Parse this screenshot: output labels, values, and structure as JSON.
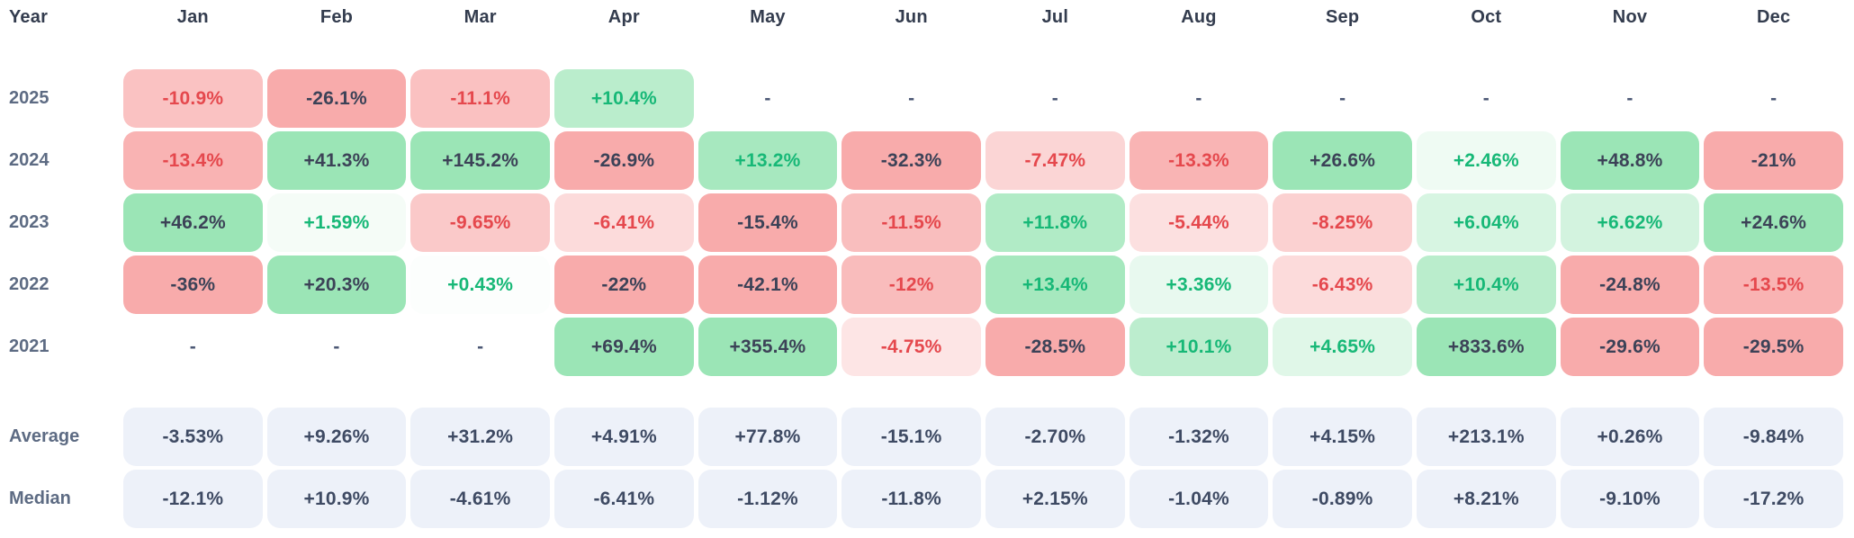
{
  "colors": {
    "positive_base": "#22C55E",
    "negative_base": "#EF4444",
    "positive_text": "#17B877",
    "negative_text": "#E5484D",
    "strong_text": "#3C4257",
    "summary_cell_bg": "#EDF1F9",
    "summary_text": "#3E4A63",
    "row_label_text": "#5D6B83",
    "header_text": "#333C4E",
    "dash_text": "#4C5875",
    "page_bg": "#FFFFFF"
  },
  "chart_data": {
    "type": "heatmap",
    "corner_label": "Year",
    "columns": [
      "Jan",
      "Feb",
      "Mar",
      "Apr",
      "May",
      "Jun",
      "Jul",
      "Aug",
      "Sep",
      "Oct",
      "Nov",
      "Dec"
    ],
    "empty_placeholder": "-",
    "legend_note": "cell background intensity encodes magnitude of monthly return; red = negative, green = positive",
    "rows": [
      {
        "label": "2025",
        "cells": [
          {
            "t": "-10.9%",
            "v": -10.9
          },
          {
            "t": "-26.1%",
            "v": -26.1
          },
          {
            "t": "-11.1%",
            "v": -11.1
          },
          {
            "t": "+10.4%",
            "v": 10.4
          },
          {
            "t": "-",
            "v": null
          },
          {
            "t": "-",
            "v": null
          },
          {
            "t": "-",
            "v": null
          },
          {
            "t": "-",
            "v": null
          },
          {
            "t": "-",
            "v": null
          },
          {
            "t": "-",
            "v": null
          },
          {
            "t": "-",
            "v": null
          },
          {
            "t": "-",
            "v": null
          }
        ]
      },
      {
        "label": "2024",
        "cells": [
          {
            "t": "-13.4%",
            "v": -13.4
          },
          {
            "t": "+41.3%",
            "v": 41.3
          },
          {
            "t": "+145.2%",
            "v": 145.2
          },
          {
            "t": "-26.9%",
            "v": -26.9
          },
          {
            "t": "+13.2%",
            "v": 13.2
          },
          {
            "t": "-32.3%",
            "v": -32.3
          },
          {
            "t": "-7.47%",
            "v": -7.47
          },
          {
            "t": "-13.3%",
            "v": -13.3
          },
          {
            "t": "+26.6%",
            "v": 26.6
          },
          {
            "t": "+2.46%",
            "v": 2.46
          },
          {
            "t": "+48.8%",
            "v": 48.8
          },
          {
            "t": "-21%",
            "v": -21
          }
        ]
      },
      {
        "label": "2023",
        "cells": [
          {
            "t": "+46.2%",
            "v": 46.2
          },
          {
            "t": "+1.59%",
            "v": 1.59
          },
          {
            "t": "-9.65%",
            "v": -9.65
          },
          {
            "t": "-6.41%",
            "v": -6.41
          },
          {
            "t": "-15.4%",
            "v": -15.4
          },
          {
            "t": "-11.5%",
            "v": -11.5
          },
          {
            "t": "+11.8%",
            "v": 11.8
          },
          {
            "t": "-5.44%",
            "v": -5.44
          },
          {
            "t": "-8.25%",
            "v": -8.25
          },
          {
            "t": "+6.04%",
            "v": 6.04
          },
          {
            "t": "+6.62%",
            "v": 6.62
          },
          {
            "t": "+24.6%",
            "v": 24.6
          }
        ]
      },
      {
        "label": "2022",
        "cells": [
          {
            "t": "-36%",
            "v": -36
          },
          {
            "t": "+20.3%",
            "v": 20.3
          },
          {
            "t": "+0.43%",
            "v": 0.43
          },
          {
            "t": "-22%",
            "v": -22
          },
          {
            "t": "-42.1%",
            "v": -42.1
          },
          {
            "t": "-12%",
            "v": -12
          },
          {
            "t": "+13.4%",
            "v": 13.4
          },
          {
            "t": "+3.36%",
            "v": 3.36
          },
          {
            "t": "-6.43%",
            "v": -6.43
          },
          {
            "t": "+10.4%",
            "v": 10.4
          },
          {
            "t": "-24.8%",
            "v": -24.8
          },
          {
            "t": "-13.5%",
            "v": -13.5
          }
        ]
      },
      {
        "label": "2021",
        "cells": [
          {
            "t": "-",
            "v": null
          },
          {
            "t": "-",
            "v": null
          },
          {
            "t": "-",
            "v": null
          },
          {
            "t": "+69.4%",
            "v": 69.4
          },
          {
            "t": "+355.4%",
            "v": 355.4
          },
          {
            "t": "-4.75%",
            "v": -4.75
          },
          {
            "t": "-28.5%",
            "v": -28.5
          },
          {
            "t": "+10.1%",
            "v": 10.1
          },
          {
            "t": "+4.65%",
            "v": 4.65
          },
          {
            "t": "+833.6%",
            "v": 833.6
          },
          {
            "t": "-29.6%",
            "v": -29.6
          },
          {
            "t": "-29.5%",
            "v": -29.5
          }
        ]
      }
    ],
    "summary_rows": [
      {
        "label": "Average",
        "cells": [
          {
            "t": "-3.53%",
            "v": -3.53
          },
          {
            "t": "+9.26%",
            "v": 9.26
          },
          {
            "t": "+31.2%",
            "v": 31.2
          },
          {
            "t": "+4.91%",
            "v": 4.91
          },
          {
            "t": "+77.8%",
            "v": 77.8
          },
          {
            "t": "-15.1%",
            "v": -15.1
          },
          {
            "t": "-2.70%",
            "v": -2.7
          },
          {
            "t": "-1.32%",
            "v": -1.32
          },
          {
            "t": "+4.15%",
            "v": 4.15
          },
          {
            "t": "+213.1%",
            "v": 213.1
          },
          {
            "t": "+0.26%",
            "v": 0.26
          },
          {
            "t": "-9.84%",
            "v": -9.84
          }
        ]
      },
      {
        "label": "Median",
        "cells": [
          {
            "t": "-12.1%",
            "v": -12.1
          },
          {
            "t": "+10.9%",
            "v": 10.9
          },
          {
            "t": "-4.61%",
            "v": -4.61
          },
          {
            "t": "-6.41%",
            "v": -6.41
          },
          {
            "t": "-1.12%",
            "v": -1.12
          },
          {
            "t": "-11.8%",
            "v": -11.8
          },
          {
            "t": "+2.15%",
            "v": 2.15
          },
          {
            "t": "-1.04%",
            "v": -1.04
          },
          {
            "t": "-0.89%",
            "v": -0.89
          },
          {
            "t": "+8.21%",
            "v": 8.21
          },
          {
            "t": "-9.10%",
            "v": -9.1
          },
          {
            "t": "-17.2%",
            "v": -17.2
          }
        ]
      }
    ]
  }
}
